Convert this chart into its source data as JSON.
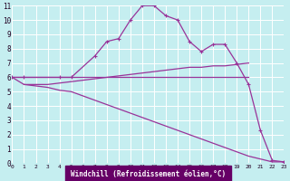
{
  "xlabel": "Windchill (Refroidissement éolien,°C)",
  "background_color": "#c5eef0",
  "grid_color": "#ffffff",
  "line_color": "#993399",
  "xlim": [
    0,
    23
  ],
  "ylim": [
    0,
    11
  ],
  "xticks": [
    0,
    1,
    2,
    3,
    4,
    5,
    6,
    7,
    8,
    9,
    10,
    11,
    12,
    13,
    14,
    15,
    16,
    17,
    18,
    19,
    20,
    21,
    22,
    23
  ],
  "yticks": [
    0,
    1,
    2,
    3,
    4,
    5,
    6,
    7,
    8,
    9,
    10,
    11
  ],
  "series": [
    {
      "x": [
        0,
        1,
        4,
        5,
        7,
        8,
        9,
        10,
        11,
        12,
        13,
        14,
        15,
        16,
        17,
        18,
        19,
        20,
        21,
        22,
        23
      ],
      "y": [
        6,
        6,
        6,
        6,
        7.5,
        8.5,
        8.7,
        10,
        11,
        11,
        10.3,
        10,
        8.5,
        7.8,
        8.3,
        8.3,
        7.0,
        5.5,
        2.3,
        0.2,
        0.1
      ],
      "marker": true
    },
    {
      "x": [
        0,
        1,
        2,
        3,
        4,
        5,
        6,
        7,
        8,
        9,
        10,
        11,
        12,
        13,
        14,
        15,
        16,
        17,
        18,
        19,
        20
      ],
      "y": [
        6,
        6,
        6,
        6,
        6,
        6,
        6,
        6,
        6,
        6,
        6,
        6,
        6,
        6,
        6,
        6,
        6,
        6,
        6,
        6,
        6
      ],
      "marker": false
    },
    {
      "x": [
        1,
        2,
        3,
        4,
        5,
        6,
        7,
        8,
        9,
        10,
        11,
        12,
        13,
        14,
        15,
        16,
        17,
        18,
        19,
        20
      ],
      "y": [
        5.5,
        5.5,
        5.5,
        5.6,
        5.7,
        5.8,
        5.9,
        6.0,
        6.1,
        6.2,
        6.3,
        6.4,
        6.5,
        6.6,
        6.7,
        6.7,
        6.8,
        6.8,
        6.9,
        7.0
      ],
      "marker": false
    },
    {
      "x": [
        0,
        1,
        2,
        3,
        4,
        5,
        6,
        7,
        8,
        9,
        10,
        11,
        12,
        13,
        14,
        15,
        16,
        17,
        18,
        19,
        20,
        22,
        23
      ],
      "y": [
        6,
        5.5,
        5.4,
        5.3,
        5.1,
        5.0,
        4.7,
        4.4,
        4.1,
        3.8,
        3.5,
        3.2,
        2.9,
        2.6,
        2.3,
        2.0,
        1.7,
        1.4,
        1.1,
        0.8,
        0.5,
        0.1,
        0.1
      ],
      "marker": false
    }
  ]
}
